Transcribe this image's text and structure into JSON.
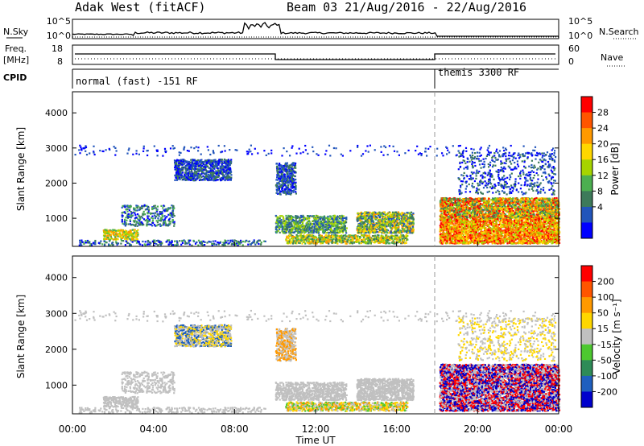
{
  "header": {
    "site": "Adak West (fitACF)",
    "beam_date": "Beam 03 21/Aug/2016 - 22/Aug/2016"
  },
  "top_panel": {
    "left_label": "N.Sky",
    "right_label": "N.Search",
    "left_ticks": [
      "10^5",
      "10^0"
    ],
    "right_ticks": [
      "10^5",
      "10^0"
    ]
  },
  "freq_panel": {
    "left_label_line1": "Freq.",
    "left_label_line2": "[MHz]",
    "right_label": "Nave",
    "left_ticks": [
      "18",
      "8"
    ],
    "right_ticks": [
      "60",
      "0"
    ]
  },
  "cpid_panel": {
    "label": "CPID",
    "mode1": "normal (fast) -151 RF",
    "mode2": "themis 3300 RF"
  },
  "colors": {
    "power": [
      "#0000ff",
      "#2255bb",
      "#3d7a5a",
      "#4caf50",
      "#a6d400",
      "#ffd700",
      "#ff9900",
      "#ff5500",
      "#ff0000"
    ],
    "velocity": [
      "#0000cc",
      "#1f5fbf",
      "#2e8b57",
      "#4dc830",
      "#c0c0c0",
      "#ffd700",
      "#ff9900",
      "#ff5500",
      "#ff0000"
    ]
  },
  "chart_data": [
    {
      "type": "heatmap",
      "name": "power",
      "ylabel": "Slant Range [km]",
      "yticks": [
        "4000",
        "3000",
        "2000",
        "1000"
      ],
      "ylim": [
        200,
        4600
      ],
      "xlim_hours": [
        0,
        24
      ],
      "colorbar_label": "Power [dB]",
      "colorbar_ticks": [
        "28",
        "24",
        "20",
        "16",
        "12",
        "8",
        "4"
      ]
    },
    {
      "type": "heatmap",
      "name": "velocity",
      "ylabel": "Slant Range [km]",
      "yticks": [
        "4000",
        "3000",
        "2000",
        "1000"
      ],
      "ylim": [
        200,
        4600
      ],
      "xlim_hours": [
        0,
        24
      ],
      "xticks": [
        "00:00",
        "04:00",
        "08:00",
        "12:00",
        "16:00",
        "20:00",
        "00:00"
      ],
      "xlabel": "Time UT",
      "colorbar_label": "Velocity [m s⁻¹]",
      "colorbar_ticks": [
        "200",
        "100",
        "50",
        "15",
        "-15",
        "-50",
        "-100",
        "-200"
      ]
    }
  ]
}
